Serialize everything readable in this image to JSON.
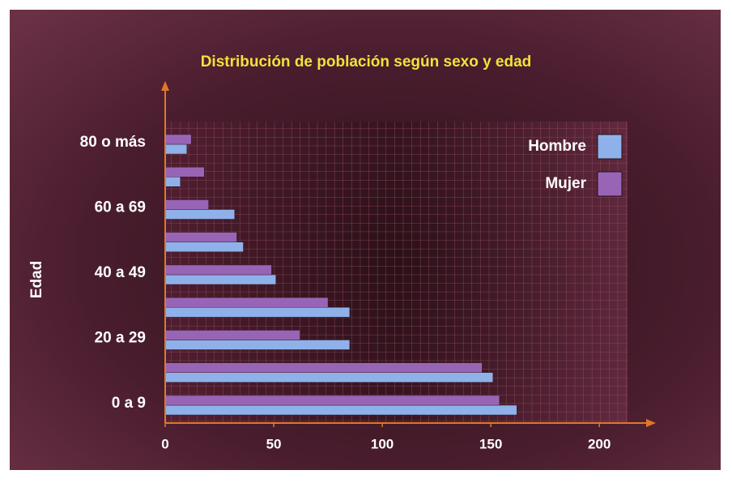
{
  "chart_data": {
    "type": "hbar",
    "title": "Distribución de población según sexo y edad",
    "y_label": "Edad",
    "categories": [
      "0 a 9",
      null,
      "20 a 29",
      null,
      "40 a 49",
      null,
      "60 a 69",
      null,
      "80 o más"
    ],
    "series": [
      {
        "name": "Hombre",
        "color": "#8fb1ea",
        "values": [
          162,
          151,
          85,
          85,
          51,
          36,
          32,
          7,
          10
        ]
      },
      {
        "name": "Mujer",
        "color": "#9865b6",
        "values": [
          154,
          146,
          62,
          75,
          49,
          33,
          20,
          18,
          12
        ]
      }
    ],
    "xlim": [
      0,
      213
    ],
    "xticks": [
      0,
      50,
      100,
      150,
      200
    ],
    "legend": "upper right",
    "grid": true
  }
}
